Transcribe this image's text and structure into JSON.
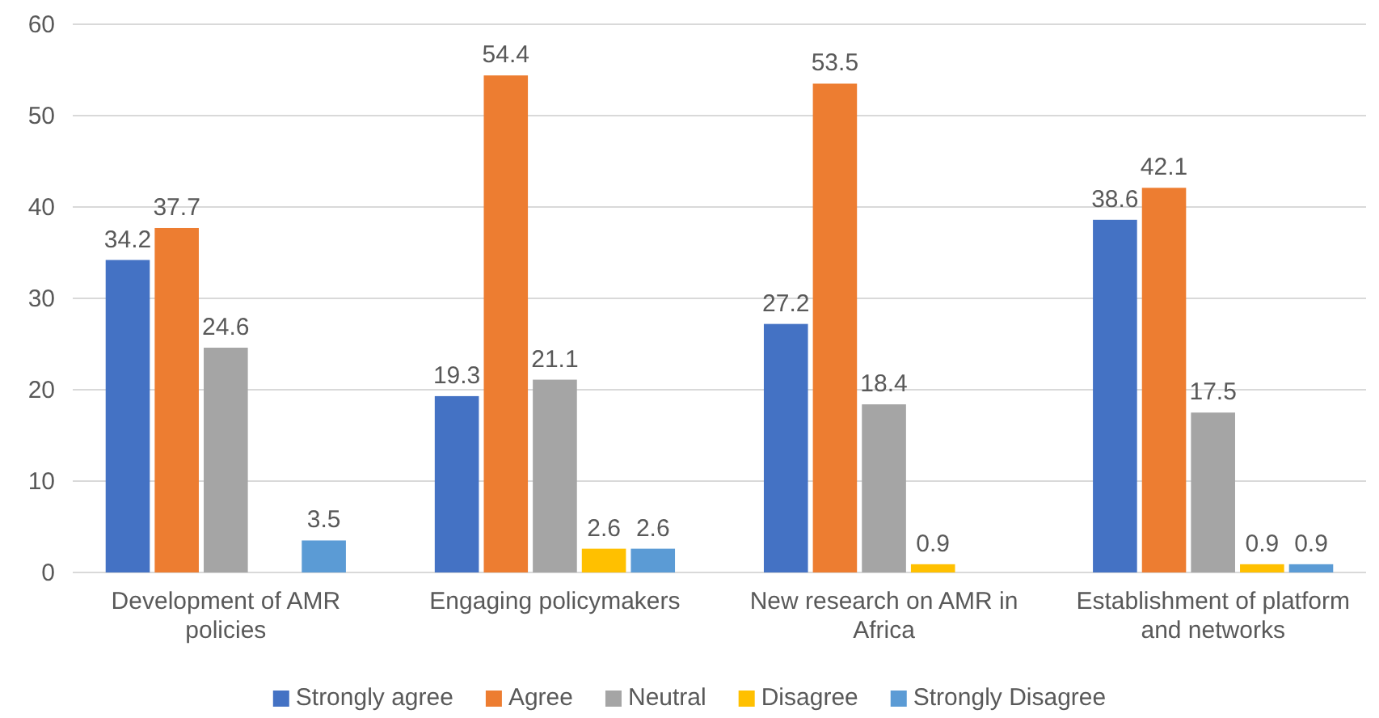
{
  "chart_data": {
    "type": "bar",
    "categories": [
      "Development of AMR policies",
      "Engaging policymakers",
      "New research on AMR in Africa",
      "Establishment of platform and networks"
    ],
    "series": [
      {
        "name": "Strongly agree",
        "color": "#4472c4",
        "values": [
          34.2,
          19.3,
          27.2,
          38.6
        ]
      },
      {
        "name": "Agree",
        "color": "#ed7d31",
        "values": [
          37.7,
          54.4,
          53.5,
          42.1
        ]
      },
      {
        "name": "Neutral",
        "color": "#a5a5a5",
        "values": [
          24.6,
          21.1,
          18.4,
          17.5
        ]
      },
      {
        "name": "Disagree",
        "color": "#ffc000",
        "values": [
          null,
          2.6,
          0.9,
          0.9
        ]
      },
      {
        "name": "Strongly Disagree",
        "color": "#5b9bd5",
        "values": [
          3.5,
          2.6,
          null,
          0.9
        ]
      }
    ],
    "ylim": [
      0,
      60
    ],
    "yticks": [
      0,
      10,
      20,
      30,
      40,
      50,
      60
    ],
    "grid": "y",
    "legend": "bottom",
    "data_labels": true
  }
}
